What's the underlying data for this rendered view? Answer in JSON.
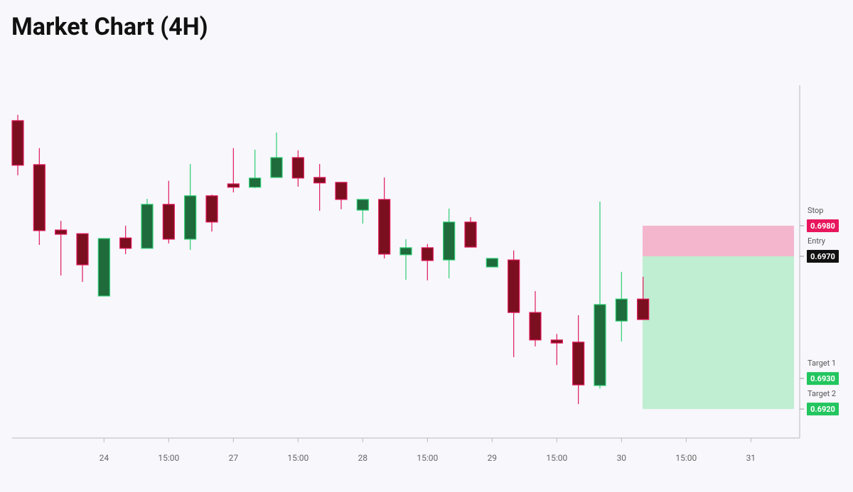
{
  "chart_data": {
    "type": "candlestick",
    "title": "Market Chart (4H)",
    "categories": [
      null,
      null,
      null,
      null,
      "24",
      null,
      null,
      "15:00",
      null,
      null,
      "27",
      null,
      null,
      "15:00",
      null,
      null,
      "28",
      null,
      null,
      "15:00",
      null,
      null,
      "29",
      null,
      null,
      "15:00",
      null,
      null,
      "30",
      null,
      null,
      "15:00",
      null,
      null,
      "31"
    ],
    "open": [
      0.70144,
      0.7,
      0.69786,
      0.69774,
      0.6957,
      0.6976,
      0.69726,
      0.6987,
      0.69756,
      0.69898,
      0.69937,
      0.69926,
      0.69958,
      0.70023,
      0.69958,
      0.69942,
      0.69851,
      0.69886,
      0.69705,
      0.69728,
      0.69688,
      0.69812,
      0.69665,
      0.69688,
      0.69516,
      0.69426,
      0.69419,
      0.69277,
      0.69488,
      0.6956,
      null,
      null,
      null,
      null,
      null
    ],
    "high": [
      0.70163,
      0.70054,
      0.69816,
      0.69774,
      0.69758,
      0.698,
      0.69888,
      0.69947,
      0.70002,
      0.69902,
      0.70054,
      0.70049,
      0.70105,
      0.70047,
      0.70002,
      0.69942,
      0.69886,
      0.69958,
      0.69756,
      0.6974,
      0.69856,
      0.69828,
      0.69693,
      0.69719,
      0.69586,
      0.69446,
      0.69507,
      0.69879,
      0.69649,
      0.69633,
      null,
      null,
      null,
      null,
      null
    ],
    "low": [
      0.69965,
      0.69737,
      0.69637,
      0.69616,
      0.6957,
      0.69707,
      0.69726,
      0.69742,
      0.69721,
      0.69781,
      0.69909,
      0.69923,
      0.69958,
      0.69928,
      0.69849,
      0.69854,
      0.69807,
      0.69693,
      0.69623,
      0.69621,
      0.69628,
      0.6973,
      0.69665,
      0.6937,
      0.69405,
      0.69344,
      0.69216,
      0.69267,
      0.69421,
      0.69493,
      null,
      null,
      null,
      null,
      null
    ],
    "close": [
      0.69998,
      0.69784,
      0.69772,
      0.69672,
      0.69758,
      0.69726,
      0.6987,
      0.69756,
      0.69898,
      0.69812,
      0.69926,
      0.69956,
      0.70023,
      0.69956,
      0.6994,
      0.69886,
      0.69886,
      0.69707,
      0.69728,
      0.69686,
      0.69812,
      0.6973,
      0.69693,
      0.69516,
      0.69426,
      0.69416,
      0.69279,
      0.69542,
      0.6956,
      0.69493,
      null,
      null,
      null,
      null,
      null
    ],
    "up_color": "#1f6b3b",
    "down_color": "#7b0f1f",
    "ylim": [
      0.69105,
      0.7026
    ],
    "levels": [
      {
        "name": "Stop",
        "value": 0.698,
        "label": "0.6980",
        "color": "#e8175d"
      },
      {
        "name": "Entry",
        "value": 0.697,
        "label": "0.6970",
        "color": "#111111"
      },
      {
        "name": "Target 1",
        "value": 0.693,
        "label": "0.6930",
        "color": "#22c55e"
      },
      {
        "name": "Target 2",
        "value": 0.692,
        "label": "0.6920",
        "color": "#22c55e"
      }
    ],
    "risk_color": "#f4b6cc",
    "reward_color": "#bfeed2"
  }
}
